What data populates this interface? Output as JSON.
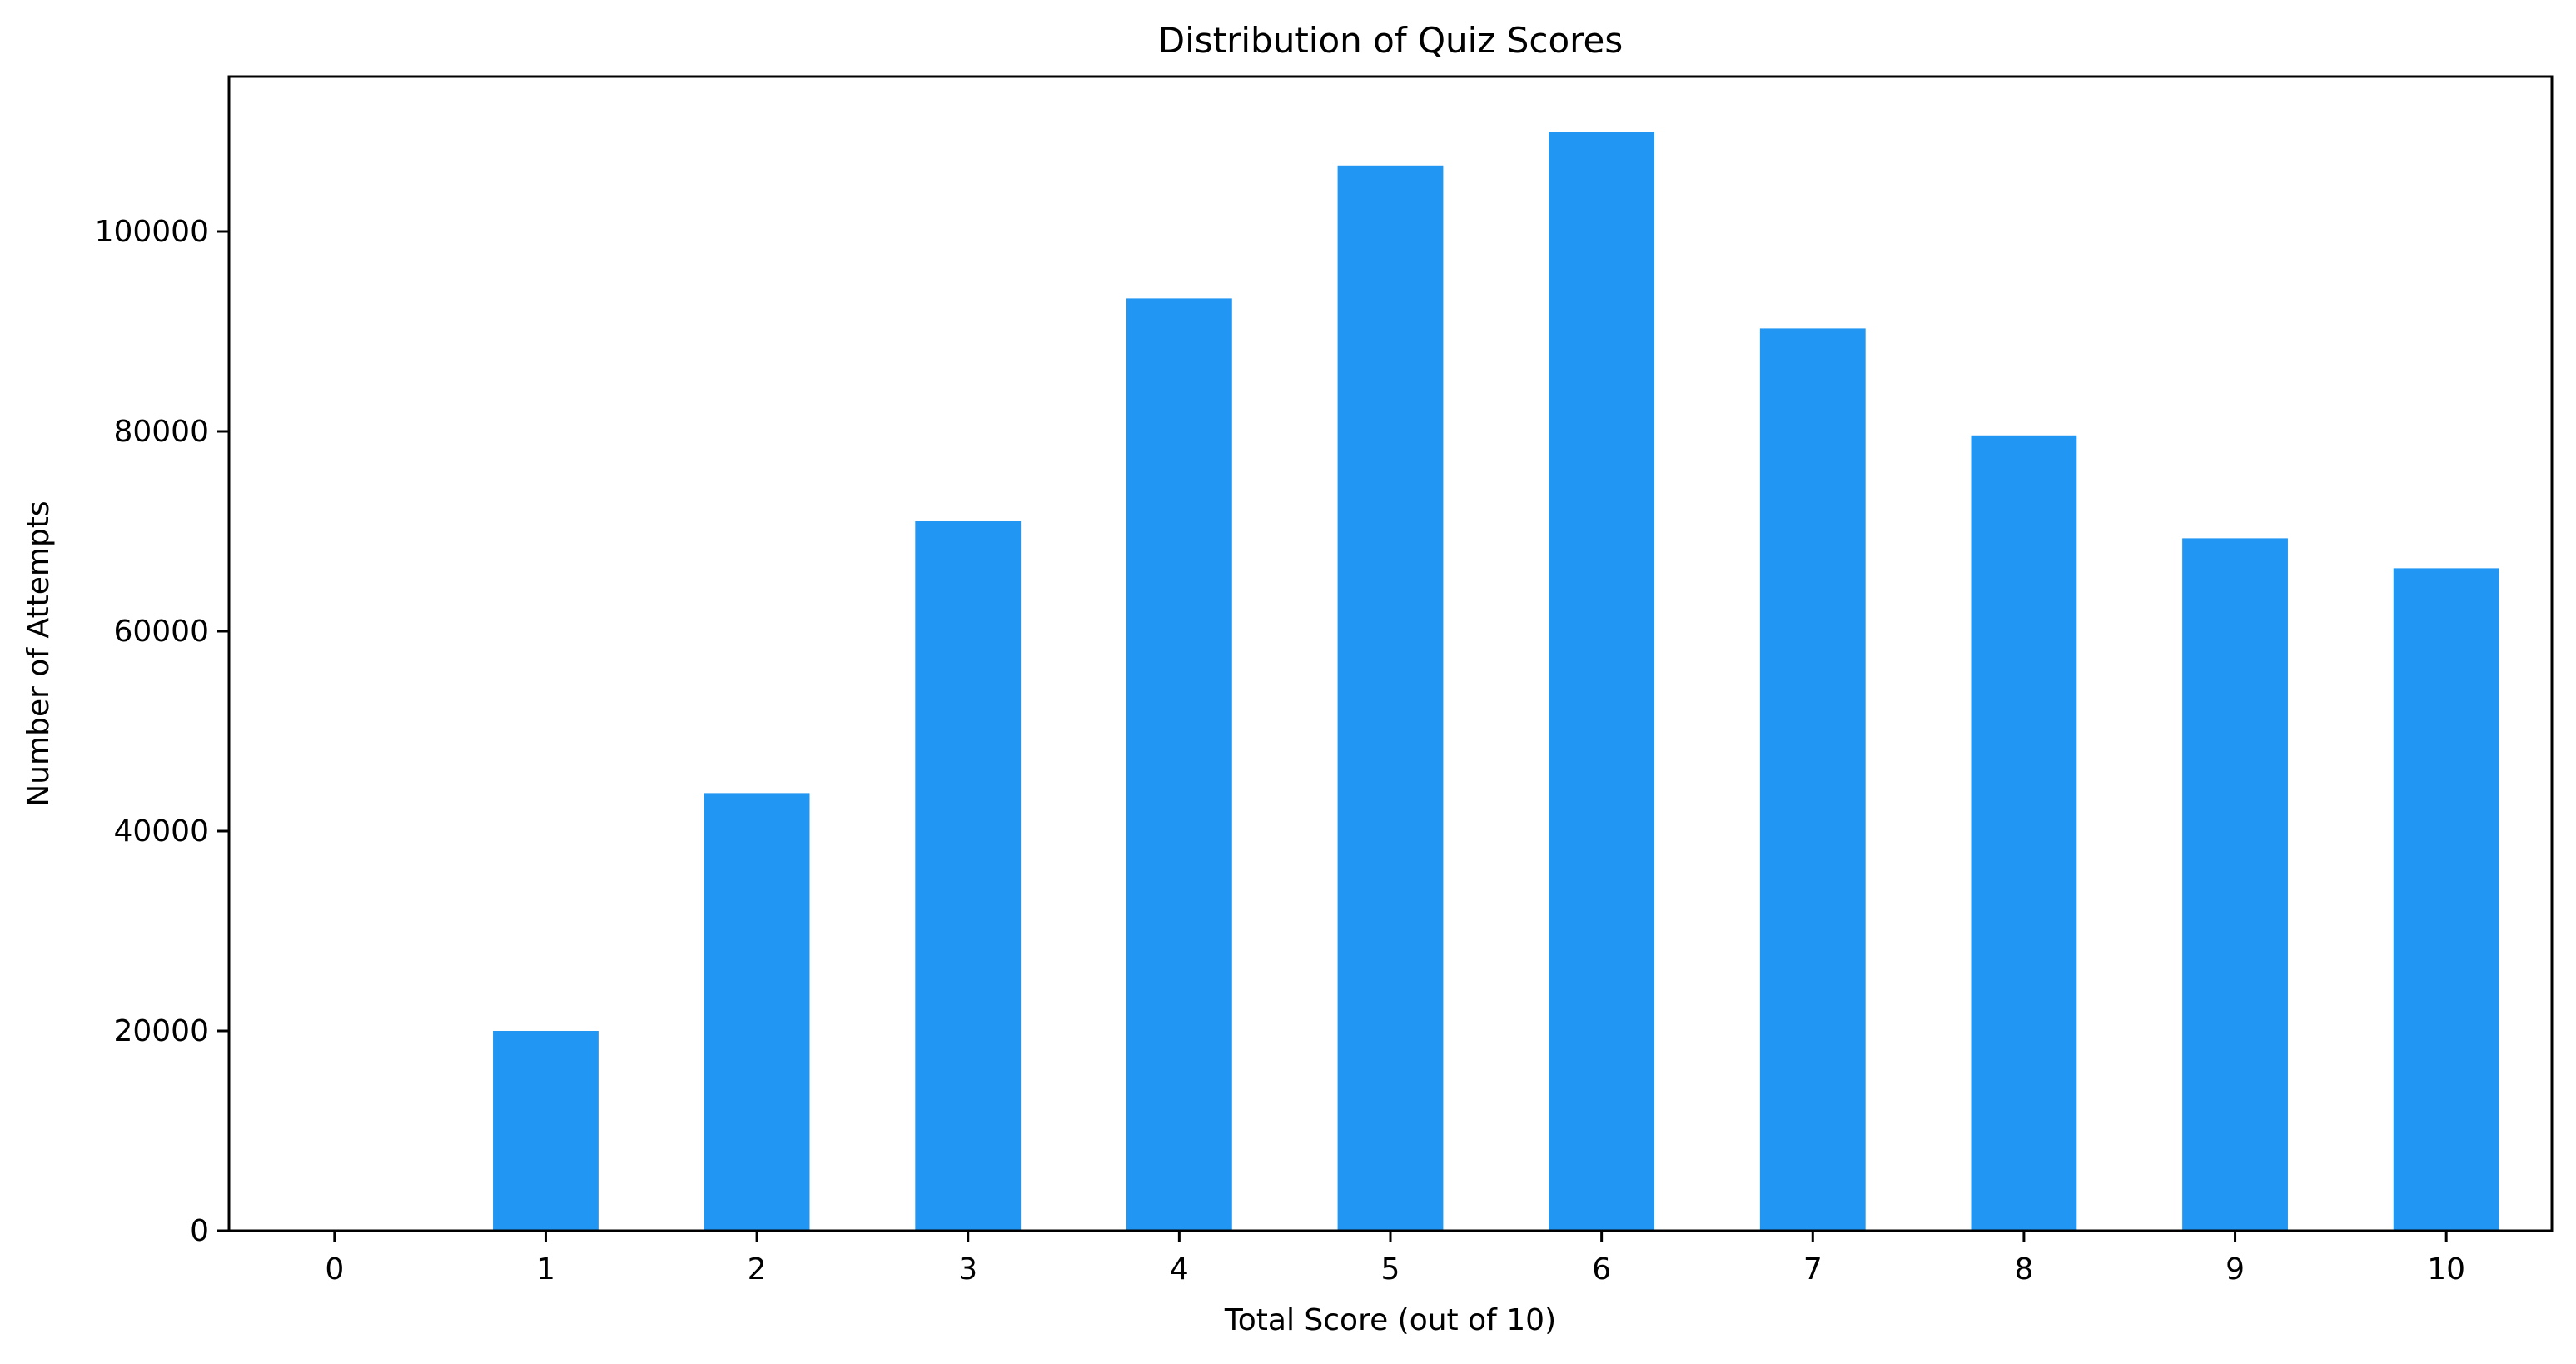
{
  "chart_data": {
    "type": "bar",
    "title": "Distribution of Quiz Scores",
    "xlabel": "Total Score (out of 10)",
    "ylabel": "Number of Attempts",
    "categories": [
      "0",
      "1",
      "2",
      "3",
      "4",
      "5",
      "6",
      "7",
      "8",
      "9",
      "10"
    ],
    "values": [
      0,
      20000,
      43800,
      71000,
      93300,
      106600,
      110000,
      90300,
      79600,
      69300,
      66300
    ],
    "ylim": [
      0,
      115500
    ],
    "yticks": [
      0,
      20000,
      40000,
      60000,
      80000,
      100000
    ],
    "bar_color": "#2196f3",
    "grid": false,
    "legend": false
  }
}
